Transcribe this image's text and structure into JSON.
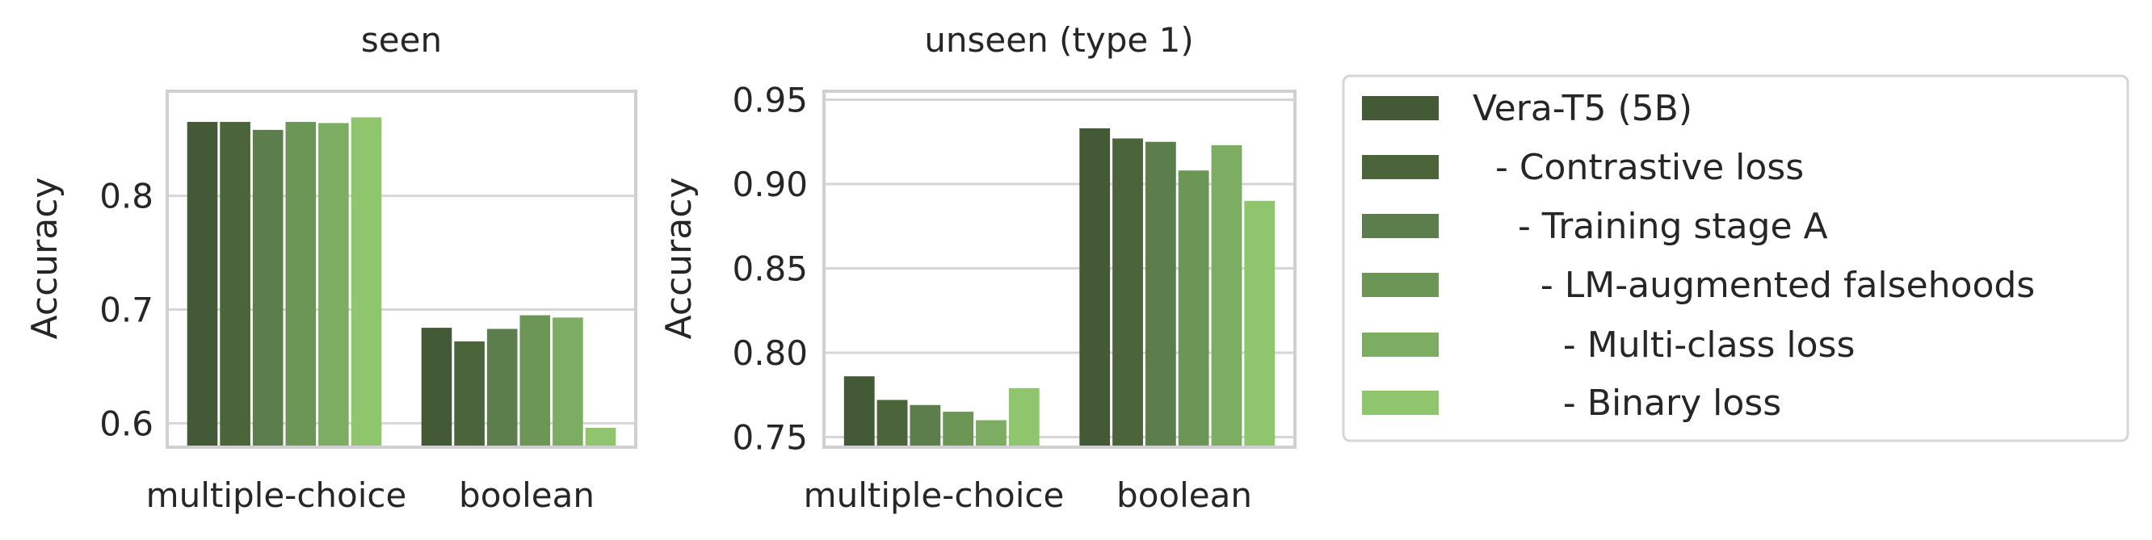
{
  "chart_data": [
    {
      "type": "bar",
      "title": "seen",
      "ylabel": "Accuracy",
      "xlabel": "",
      "categories": [
        "multiple-choice",
        "boolean"
      ],
      "ylim": [
        0.579,
        0.892
      ],
      "yticks": [
        0.6,
        0.7,
        0.8
      ],
      "ytick_labels": [
        "0.6",
        "0.7",
        "0.8"
      ],
      "grid": true,
      "series": [
        {
          "name": "Vera-T5 (5B)",
          "values": [
            0.865,
            0.684
          ]
        },
        {
          "name": "  - Contrastive loss",
          "values": [
            0.865,
            0.672
          ]
        },
        {
          "name": "    - Training stage A",
          "values": [
            0.858,
            0.683
          ]
        },
        {
          "name": "      - LM-augmented falsehoods",
          "values": [
            0.865,
            0.695
          ]
        },
        {
          "name": "        - Multi-class loss",
          "values": [
            0.864,
            0.693
          ]
        },
        {
          "name": "        - Binary loss",
          "values": [
            0.869,
            0.596
          ]
        }
      ]
    },
    {
      "type": "bar",
      "title": "unseen (type 1)",
      "ylabel": "Accuracy",
      "xlabel": "",
      "categories": [
        "multiple-choice",
        "boolean"
      ],
      "ylim": [
        0.744,
        0.955
      ],
      "yticks": [
        0.75,
        0.8,
        0.85,
        0.9,
        0.95
      ],
      "ytick_labels": [
        "0.75",
        "0.80",
        "0.85",
        "0.90",
        "0.95"
      ],
      "grid": true,
      "series": [
        {
          "name": "Vera-T5 (5B)",
          "values": [
            0.786,
            0.933
          ]
        },
        {
          "name": "  - Contrastive loss",
          "values": [
            0.772,
            0.927
          ]
        },
        {
          "name": "    - Training stage A",
          "values": [
            0.769,
            0.925
          ]
        },
        {
          "name": "      - LM-augmented falsehoods",
          "values": [
            0.765,
            0.908
          ]
        },
        {
          "name": "        - Multi-class loss",
          "values": [
            0.76,
            0.923
          ]
        },
        {
          "name": "        - Binary loss",
          "values": [
            0.779,
            0.89
          ]
        }
      ]
    }
  ],
  "legend": {
    "placement": "right",
    "entries": [
      "Vera-T5 (5B)",
      "  - Contrastive loss",
      "    - Training stage A",
      "      - LM-augmented falsehoods",
      "        - Multi-class loss",
      "        - Binary loss"
    ]
  },
  "colors": [
    "#445a36",
    "#4b6439",
    "#5b7e4c",
    "#6b9655",
    "#7dad62",
    "#8fc66d"
  ]
}
